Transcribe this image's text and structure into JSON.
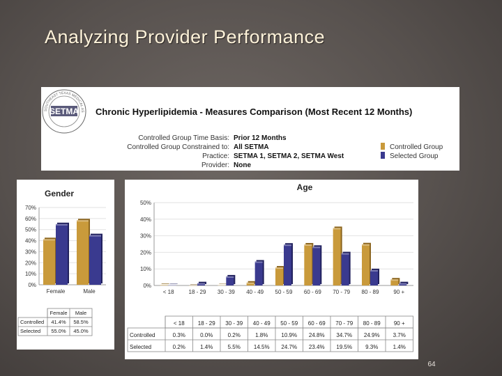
{
  "slide": {
    "title": "Analyzing Provider Performance",
    "page_number": "64"
  },
  "report": {
    "logo_text": "SETMA",
    "logo_ring_text": "SOUTHEAST TEXAS MEDICAL ASSOCIATES",
    "title": "Chronic Hyperlipidemia -  Measures Comparison (Most Recent 12 Months)",
    "criteria": [
      {
        "label": "Controlled Group Time Basis:",
        "value": "Prior 12 Months"
      },
      {
        "label": "Controlled Group Constrained to:",
        "value": "All SETMA"
      },
      {
        "label": "Practice:",
        "value": "SETMA 1, SETMA 2, SETMA West"
      },
      {
        "label": "Provider:",
        "value": "None"
      }
    ],
    "legend": [
      {
        "name": "Controlled Group",
        "color": "#c99a3b"
      },
      {
        "name": "Selected Group",
        "color": "#3a3a8f"
      }
    ]
  },
  "chart_data": [
    {
      "type": "bar",
      "title": "Gender",
      "categories": [
        "Female",
        "Male"
      ],
      "series": [
        {
          "name": "Controlled",
          "values": [
            41.4,
            58.5
          ]
        },
        {
          "name": "Selected",
          "values": [
            55.0,
            45.0
          ]
        }
      ],
      "ylim": [
        0,
        70
      ],
      "yticks": [
        "0%",
        "10%",
        "20%",
        "30%",
        "40%",
        "50%",
        "60%",
        "70%"
      ],
      "xlabel": "",
      "ylabel": "",
      "grid": true,
      "table": {
        "headers": [
          "",
          "Female",
          "Male"
        ],
        "rows": [
          {
            "label": "Controlled",
            "values": [
              "41.4%",
              "58.5%"
            ]
          },
          {
            "label": "Selected",
            "values": [
              "55.0%",
              "45.0%"
            ]
          }
        ]
      }
    },
    {
      "type": "bar",
      "title": "Age",
      "categories": [
        "< 18",
        "18 - 29",
        "30 - 39",
        "40 - 49",
        "50 - 59",
        "60 - 69",
        "70 - 79",
        "80 - 89",
        "90 +"
      ],
      "series": [
        {
          "name": "Controlled",
          "values": [
            0.3,
            0.0,
            0.2,
            1.8,
            10.9,
            24.8,
            34.7,
            24.9,
            3.7
          ]
        },
        {
          "name": "Selected",
          "values": [
            0.2,
            1.4,
            5.5,
            14.5,
            24.7,
            23.4,
            19.5,
            9.3,
            1.4
          ]
        }
      ],
      "ylim": [
        0,
        50
      ],
      "yticks": [
        "0%",
        "10%",
        "20%",
        "30%",
        "40%",
        "50%"
      ],
      "xlabel": "",
      "ylabel": "",
      "grid": true,
      "table": {
        "headers": [
          "",
          "< 18",
          "18 - 29",
          "30 - 39",
          "40 - 49",
          "50 - 59",
          "60 - 69",
          "70 - 79",
          "80 - 89",
          "90 +"
        ],
        "rows": [
          {
            "label": "Controlled",
            "values": [
              "0.3%",
              "0.0%",
              "0.2%",
              "1.8%",
              "10.9%",
              "24.8%",
              "34.7%",
              "24.9%",
              "3.7%"
            ]
          },
          {
            "label": "Selected",
            "values": [
              "0.2%",
              "1.4%",
              "5.5%",
              "14.5%",
              "24.7%",
              "23.4%",
              "19.5%",
              "9.3%",
              "1.4%"
            ]
          }
        ]
      }
    }
  ],
  "colors": {
    "controlled": "#c99a3b",
    "controlled_dark": "#8c6620",
    "selected": "#3a3a8f",
    "selected_dark": "#22225e"
  }
}
